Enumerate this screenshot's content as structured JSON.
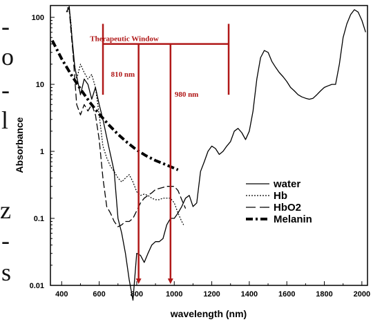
{
  "fragment_chars": [
    "-",
    "o",
    "-",
    "l",
    "z",
    "-",
    "s"
  ],
  "chart_data": {
    "type": "line",
    "xlabel": "wavelength (nm)",
    "ylabel": "Absorbance",
    "xlim": [
      340,
      2030
    ],
    "ylim": [
      0.01,
      150
    ],
    "yscale": "log",
    "xticks": [
      400,
      600,
      800,
      1000,
      1200,
      1400,
      1600,
      1800,
      2000
    ],
    "yticks": [
      {
        "value": 0.01,
        "label": "0.01"
      },
      {
        "value": 0.1,
        "label": "0.1"
      },
      {
        "value": 1,
        "label": "1"
      },
      {
        "value": 10,
        "label": "10"
      },
      {
        "value": 100,
        "label": "100"
      }
    ],
    "legend_position": "right",
    "series": [
      {
        "name": "water",
        "style": "solid",
        "points": [
          [
            425,
            120
          ],
          [
            440,
            145
          ],
          [
            450,
            70
          ],
          [
            470,
            18
          ],
          [
            500,
            7
          ],
          [
            520,
            12
          ],
          [
            540,
            10
          ],
          [
            560,
            6
          ],
          [
            580,
            9
          ],
          [
            600,
            5
          ],
          [
            620,
            3
          ],
          [
            650,
            1.2
          ],
          [
            680,
            0.5
          ],
          [
            700,
            0.1
          ],
          [
            720,
            0.06
          ],
          [
            740,
            0.03
          ],
          [
            760,
            0.012
          ],
          [
            780,
            0.006
          ],
          [
            800,
            0.03
          ],
          [
            820,
            0.028
          ],
          [
            840,
            0.022
          ],
          [
            860,
            0.03
          ],
          [
            880,
            0.04
          ],
          [
            900,
            0.045
          ],
          [
            920,
            0.045
          ],
          [
            940,
            0.05
          ],
          [
            960,
            0.08
          ],
          [
            980,
            0.1
          ],
          [
            1000,
            0.1
          ],
          [
            1020,
            0.12
          ],
          [
            1040,
            0.15
          ],
          [
            1060,
            0.2
          ],
          [
            1080,
            0.22
          ],
          [
            1100,
            0.15
          ],
          [
            1120,
            0.17
          ],
          [
            1140,
            0.5
          ],
          [
            1160,
            0.7
          ],
          [
            1180,
            1.0
          ],
          [
            1200,
            1.2
          ],
          [
            1220,
            1.1
          ],
          [
            1240,
            0.9
          ],
          [
            1260,
            1.0
          ],
          [
            1280,
            1.2
          ],
          [
            1300,
            1.4
          ],
          [
            1320,
            2.0
          ],
          [
            1340,
            2.2
          ],
          [
            1360,
            1.9
          ],
          [
            1380,
            1.5
          ],
          [
            1400,
            2.0
          ],
          [
            1420,
            4
          ],
          [
            1440,
            12
          ],
          [
            1460,
            25
          ],
          [
            1480,
            32
          ],
          [
            1500,
            30
          ],
          [
            1520,
            22
          ],
          [
            1540,
            18
          ],
          [
            1560,
            15
          ],
          [
            1580,
            13
          ],
          [
            1600,
            11
          ],
          [
            1620,
            9
          ],
          [
            1640,
            8
          ],
          [
            1660,
            7
          ],
          [
            1680,
            6.5
          ],
          [
            1700,
            6.2
          ],
          [
            1720,
            6
          ],
          [
            1740,
            6.2
          ],
          [
            1760,
            7
          ],
          [
            1780,
            8
          ],
          [
            1800,
            9
          ],
          [
            1820,
            9.5
          ],
          [
            1840,
            10
          ],
          [
            1860,
            10
          ],
          [
            1880,
            20
          ],
          [
            1900,
            50
          ],
          [
            1920,
            80
          ],
          [
            1940,
            110
          ],
          [
            1960,
            130
          ],
          [
            1980,
            120
          ],
          [
            2000,
            90
          ],
          [
            2020,
            60
          ]
        ]
      },
      {
        "name": "Hb",
        "style": "dotted",
        "points": [
          [
            430,
            120
          ],
          [
            440,
            140
          ],
          [
            450,
            80
          ],
          [
            460,
            30
          ],
          [
            480,
            12
          ],
          [
            500,
            20
          ],
          [
            520,
            15
          ],
          [
            540,
            12
          ],
          [
            560,
            14
          ],
          [
            580,
            9
          ],
          [
            600,
            3.5
          ],
          [
            620,
            1.2
          ],
          [
            640,
            0.8
          ],
          [
            660,
            0.6
          ],
          [
            680,
            0.5
          ],
          [
            700,
            0.4
          ],
          [
            720,
            0.35
          ],
          [
            740,
            0.4
          ],
          [
            760,
            0.45
          ],
          [
            780,
            0.35
          ],
          [
            800,
            0.25
          ],
          [
            820,
            0.22
          ],
          [
            840,
            0.23
          ],
          [
            860,
            0.22
          ],
          [
            880,
            0.2
          ],
          [
            900,
            0.19
          ],
          [
            920,
            0.19
          ],
          [
            940,
            0.2
          ],
          [
            960,
            0.2
          ],
          [
            980,
            0.2
          ],
          [
            1000,
            0.17
          ],
          [
            1020,
            0.12
          ],
          [
            1040,
            0.09
          ],
          [
            1050,
            0.08
          ]
        ]
      },
      {
        "name": "HbO2",
        "style": "dashed",
        "points": [
          [
            430,
            140
          ],
          [
            440,
            130
          ],
          [
            450,
            60
          ],
          [
            460,
            30
          ],
          [
            470,
            12
          ],
          [
            480,
            5
          ],
          [
            500,
            3.5
          ],
          [
            520,
            5
          ],
          [
            540,
            4
          ],
          [
            560,
            5
          ],
          [
            580,
            3.5
          ],
          [
            600,
            1.5
          ],
          [
            620,
            0.4
          ],
          [
            640,
            0.15
          ],
          [
            660,
            0.12
          ],
          [
            680,
            0.09
          ],
          [
            700,
            0.075
          ],
          [
            720,
            0.08
          ],
          [
            740,
            0.09
          ],
          [
            760,
            0.09
          ],
          [
            780,
            0.1
          ],
          [
            800,
            0.13
          ],
          [
            820,
            0.17
          ],
          [
            840,
            0.2
          ],
          [
            860,
            0.22
          ],
          [
            880,
            0.24
          ],
          [
            900,
            0.27
          ],
          [
            920,
            0.28
          ],
          [
            940,
            0.29
          ],
          [
            960,
            0.3
          ],
          [
            980,
            0.3
          ],
          [
            1000,
            0.3
          ],
          [
            1020,
            0.26
          ],
          [
            1040,
            0.19
          ],
          [
            1060,
            0.14
          ]
        ]
      },
      {
        "name": "Melanin",
        "style": "dashdot",
        "points": [
          [
            350,
            45
          ],
          [
            400,
            24
          ],
          [
            450,
            14
          ],
          [
            500,
            8.5
          ],
          [
            550,
            5.4
          ],
          [
            600,
            3.6
          ],
          [
            650,
            2.5
          ],
          [
            700,
            1.8
          ],
          [
            750,
            1.35
          ],
          [
            800,
            1.05
          ],
          [
            850,
            0.86
          ],
          [
            900,
            0.73
          ],
          [
            950,
            0.64
          ],
          [
            1000,
            0.56
          ],
          [
            1020,
            0.53
          ]
        ]
      }
    ],
    "annotations": [
      {
        "text": "Therapeutic Window",
        "from": 620,
        "to": 1290
      },
      {
        "text": "810 nm",
        "x": 810
      },
      {
        "text": "980 nm",
        "x": 980
      }
    ]
  }
}
